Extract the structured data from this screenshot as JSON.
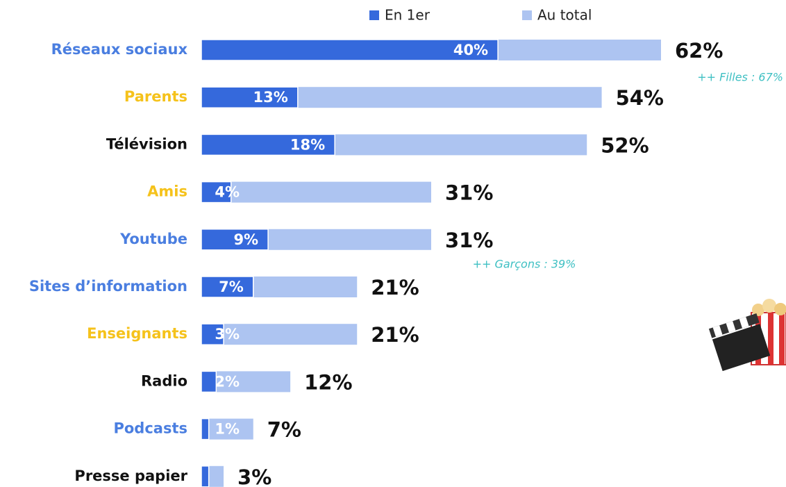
{
  "chart_data": {
    "type": "bar",
    "orientation": "horizontal",
    "categories": [
      "Réseaux sociaux",
      "Parents",
      "Télévision",
      "Amis",
      "Youtube",
      "Sites d’information",
      "Enseignants",
      "Radio",
      "Podcasts",
      "Presse papier"
    ],
    "category_colors": [
      "#4a7ee0",
      "#f5c21b",
      "#111111",
      "#f5c21b",
      "#4a7ee0",
      "#4a7ee0",
      "#f5c21b",
      "#111111",
      "#4a7ee0",
      "#111111"
    ],
    "series": [
      {
        "name": "En 1er",
        "color": "#3569dc",
        "values": [
          40,
          13,
          18,
          4,
          9,
          7,
          3,
          2,
          1,
          1
        ],
        "value_labels": [
          "40%",
          "13%",
          "18%",
          "4%",
          "9%",
          "7%",
          "3%",
          "2%",
          "1%",
          null
        ]
      },
      {
        "name": "Au total",
        "color": "#adc4f1",
        "values": [
          62,
          54,
          52,
          31,
          31,
          21,
          21,
          12,
          7,
          3
        ],
        "value_labels": [
          "62%",
          "54%",
          "52%",
          "31%",
          "31%",
          "21%",
          "21%",
          "12%",
          "7%",
          "3%"
        ]
      }
    ],
    "annotations": [
      "++ Filles : 67%",
      "++ Garçons : 39%"
    ]
  }
}
